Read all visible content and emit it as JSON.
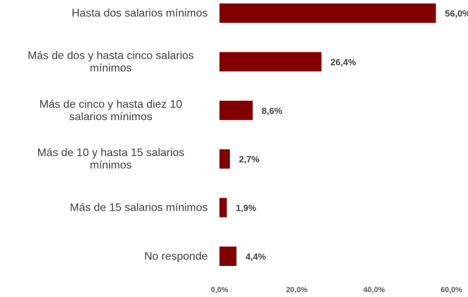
{
  "chart_data": {
    "type": "bar",
    "orientation": "horizontal",
    "categories": [
      [
        "Hasta dos salarios mínimos"
      ],
      [
        "Más de dos y hasta cinco salarios",
        "mínimos"
      ],
      [
        "Más de cinco y hasta diez 10",
        "salarios mínimos"
      ],
      [
        "Más de 10 y hasta 15 salarios",
        "mínimos"
      ],
      [
        "Más de 15 salarios mínimos"
      ],
      [
        "No responde"
      ]
    ],
    "values": [
      56.0,
      26.4,
      8.6,
      2.7,
      1.9,
      4.4
    ],
    "value_labels": [
      "56,0%",
      "26,4%",
      "8,6%",
      "2,7%",
      "1,9%",
      "4,4%"
    ],
    "xlim": [
      0,
      60
    ],
    "x_ticks": [
      0,
      20,
      40,
      60
    ],
    "x_tick_labels": [
      "0,0%",
      "20,0%",
      "40,0%",
      "60,0%"
    ],
    "bar_color": "#800000",
    "grid": false,
    "legend": false
  }
}
